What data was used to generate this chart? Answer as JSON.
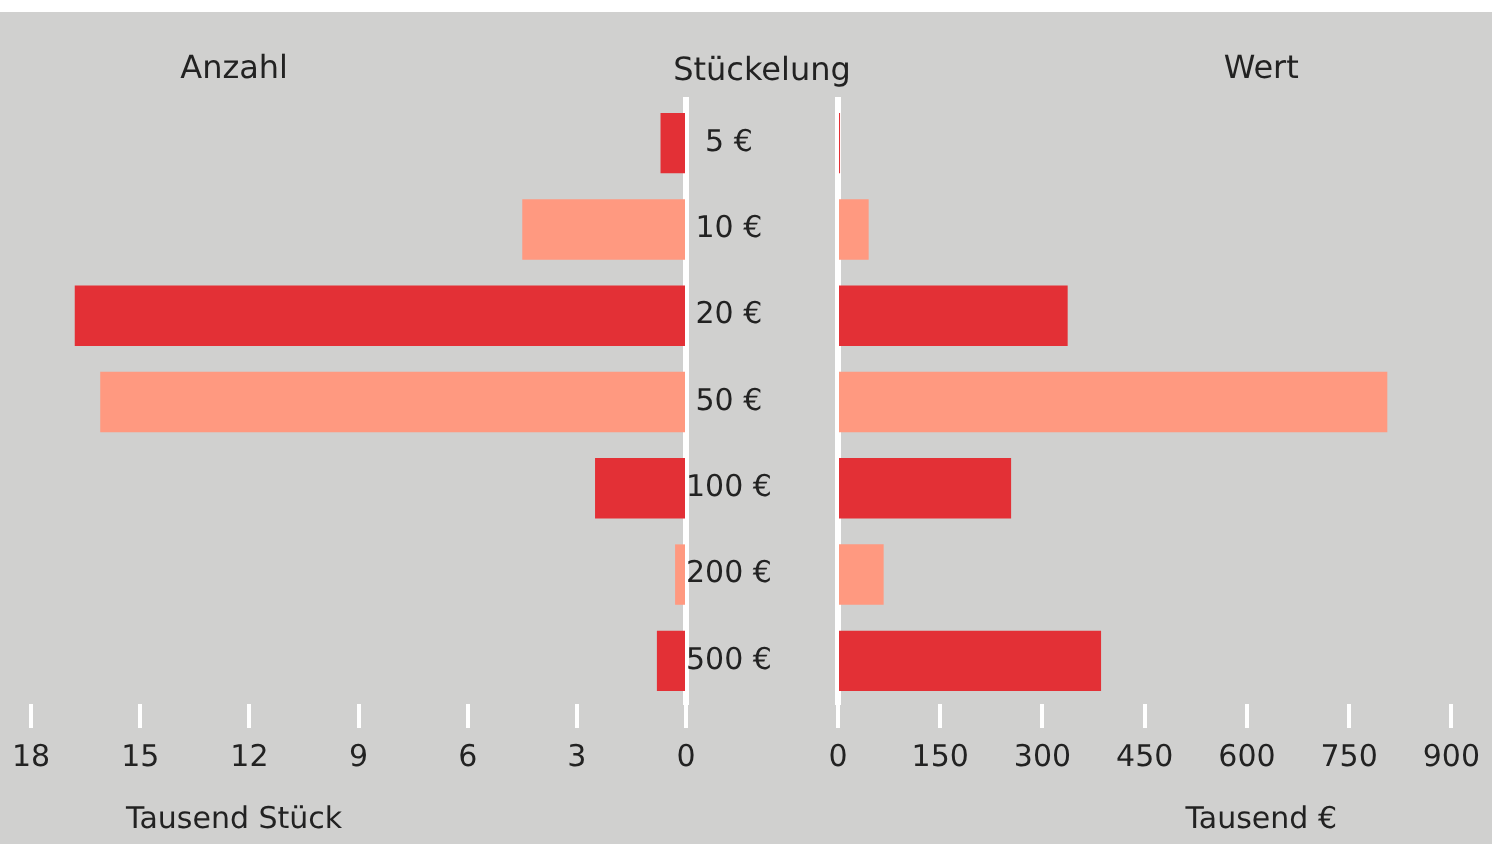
{
  "chart_data": [
    {
      "type": "bar",
      "orientation": "horizontal",
      "title": "Anzahl",
      "ylabel": "Stückelung",
      "xlabel": "Tausend Stück",
      "categories": [
        "5 €",
        "10 €",
        "20 €",
        "50 €",
        "100 €",
        "200 €",
        "500 €"
      ],
      "values": [
        0.7,
        4.5,
        16.8,
        16.1,
        2.5,
        0.3,
        0.8
      ],
      "colors": [
        "#e33036",
        "#ff9980",
        "#e33036",
        "#ff9980",
        "#e33036",
        "#ff9980",
        "#e33036"
      ],
      "xlim": [
        18,
        0
      ],
      "xticks": [
        18,
        15,
        12,
        9,
        6,
        3,
        0
      ],
      "grid": false
    },
    {
      "type": "bar",
      "orientation": "horizontal",
      "title": "Wert",
      "xlabel": "Tausend €",
      "categories": [
        null,
        null,
        null,
        null,
        null,
        null,
        null
      ],
      "values": [
        3,
        45,
        337,
        806,
        254,
        67,
        386
      ],
      "colors": [
        "#e33036",
        "#ff9980",
        "#e33036",
        "#ff9980",
        "#e33036",
        "#ff9980",
        "#e33036"
      ],
      "xlim": [
        0,
        900
      ],
      "xticks": [
        0,
        150,
        300,
        450,
        600,
        750,
        900
      ],
      "grid": false,
      "tick_labels": "x"
    }
  ]
}
